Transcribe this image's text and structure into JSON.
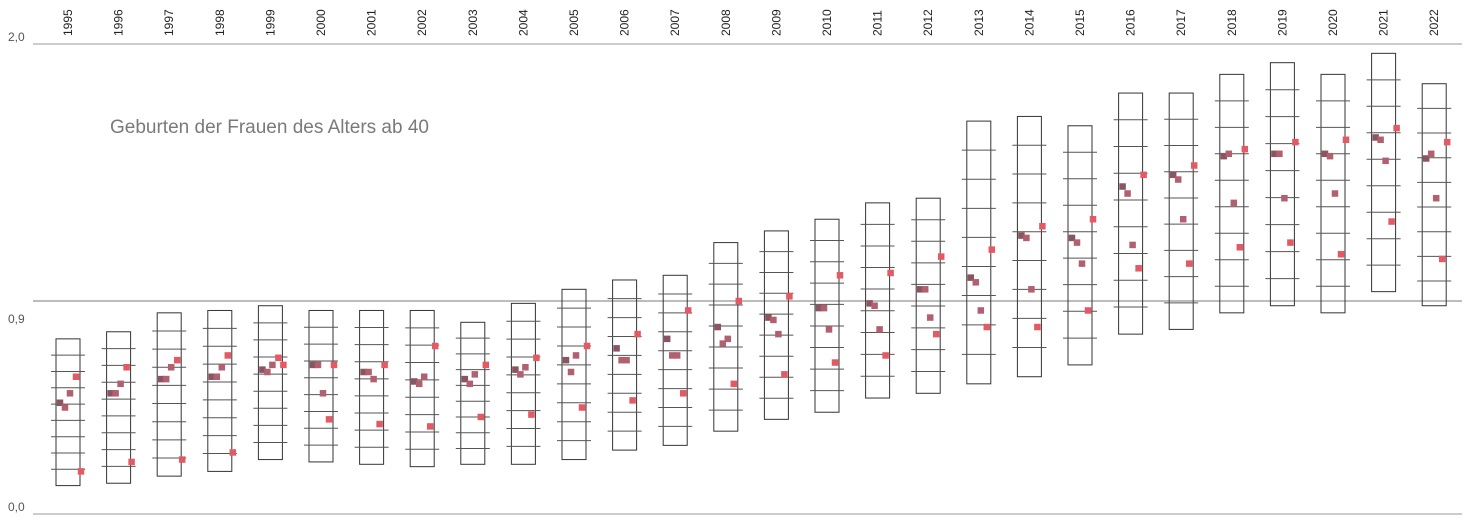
{
  "chart_data": {
    "type": "scatter",
    "title": "Geburten der Frauen des Alters ab 40",
    "y_tick_labels": [
      "2,0",
      "0,9",
      "0,0"
    ],
    "y_ticks": [
      2.0,
      0.9,
      0.0
    ],
    "ylim": [
      0.0,
      2.0
    ],
    "mid_reference": 0.9,
    "grid": false,
    "legend": "none",
    "colors": {
      "point_dark": "#8a5560",
      "point_mid": "#b0606e",
      "point_light": "#e45a64",
      "box": "#333333",
      "reference": "#9a9a9a"
    },
    "categories": [
      "1995",
      "1996",
      "1997",
      "1998",
      "1999",
      "2000",
      "2001",
      "2002",
      "2003",
      "2004",
      "2005",
      "2006",
      "2007",
      "2008",
      "2009",
      "2010",
      "2011",
      "2012",
      "2013",
      "2014",
      "2015",
      "2016",
      "2017",
      "2018",
      "2019",
      "2020",
      "2021",
      "2022"
    ],
    "ranges": [
      [
        0.12,
        0.74
      ],
      [
        0.13,
        0.77
      ],
      [
        0.16,
        0.85
      ],
      [
        0.18,
        0.86
      ],
      [
        0.23,
        0.88
      ],
      [
        0.22,
        0.86
      ],
      [
        0.21,
        0.86
      ],
      [
        0.2,
        0.86
      ],
      [
        0.21,
        0.81
      ],
      [
        0.21,
        0.89
      ],
      [
        0.23,
        0.95
      ],
      [
        0.27,
        0.99
      ],
      [
        0.29,
        1.01
      ],
      [
        0.35,
        1.15
      ],
      [
        0.4,
        1.2
      ],
      [
        0.43,
        1.25
      ],
      [
        0.49,
        1.32
      ],
      [
        0.51,
        1.34
      ],
      [
        0.55,
        1.67
      ],
      [
        0.58,
        1.69
      ],
      [
        0.63,
        1.65
      ],
      [
        0.76,
        1.79
      ],
      [
        0.78,
        1.79
      ],
      [
        0.85,
        1.87
      ],
      [
        0.88,
        1.92
      ],
      [
        0.85,
        1.87
      ],
      [
        0.94,
        1.96
      ],
      [
        0.88,
        1.83
      ]
    ],
    "series": [
      {
        "values": [
          0.47,
          0.51,
          0.57,
          0.58,
          0.61,
          0.63,
          0.6,
          0.56,
          0.57,
          0.61,
          0.65,
          0.7,
          0.74,
          0.79,
          0.83,
          0.87,
          0.89,
          0.95,
          1.0,
          1.18,
          1.17,
          1.39,
          1.44,
          1.52,
          1.53,
          1.53,
          1.6,
          1.51
        ]
      },
      {
        "values": [
          0.45,
          0.51,
          0.57,
          0.58,
          0.6,
          0.63,
          0.6,
          0.55,
          0.55,
          0.59,
          0.6,
          0.65,
          0.67,
          0.72,
          0.82,
          0.87,
          0.88,
          0.95,
          0.98,
          1.17,
          1.15,
          1.36,
          1.42,
          1.53,
          1.53,
          1.52,
          1.59,
          1.53
        ]
      },
      {
        "values": [
          0.51,
          0.55,
          0.62,
          0.62,
          0.63,
          0.51,
          0.57,
          0.58,
          0.59,
          0.62,
          0.67,
          0.65,
          0.67,
          0.74,
          0.76,
          0.78,
          0.78,
          0.83,
          0.86,
          0.95,
          1.06,
          1.14,
          1.25,
          1.32,
          1.34,
          1.36,
          1.5,
          1.34
        ]
      },
      {
        "values": [
          0.58,
          0.62,
          0.65,
          0.67,
          0.66,
          0.4,
          0.38,
          0.37,
          0.41,
          0.42,
          0.45,
          0.48,
          0.51,
          0.55,
          0.59,
          0.64,
          0.67,
          0.76,
          0.79,
          0.79,
          0.86,
          1.04,
          1.06,
          1.13,
          1.15,
          1.1,
          1.24,
          1.08
        ]
      },
      {
        "values": [
          0.18,
          0.22,
          0.23,
          0.26,
          0.63,
          0.63,
          0.63,
          0.71,
          0.63,
          0.66,
          0.71,
          0.76,
          0.86,
          0.9,
          0.92,
          1.01,
          1.02,
          1.09,
          1.12,
          1.22,
          1.25,
          1.44,
          1.48,
          1.55,
          1.58,
          1.59,
          1.64,
          1.58
        ]
      }
    ]
  }
}
